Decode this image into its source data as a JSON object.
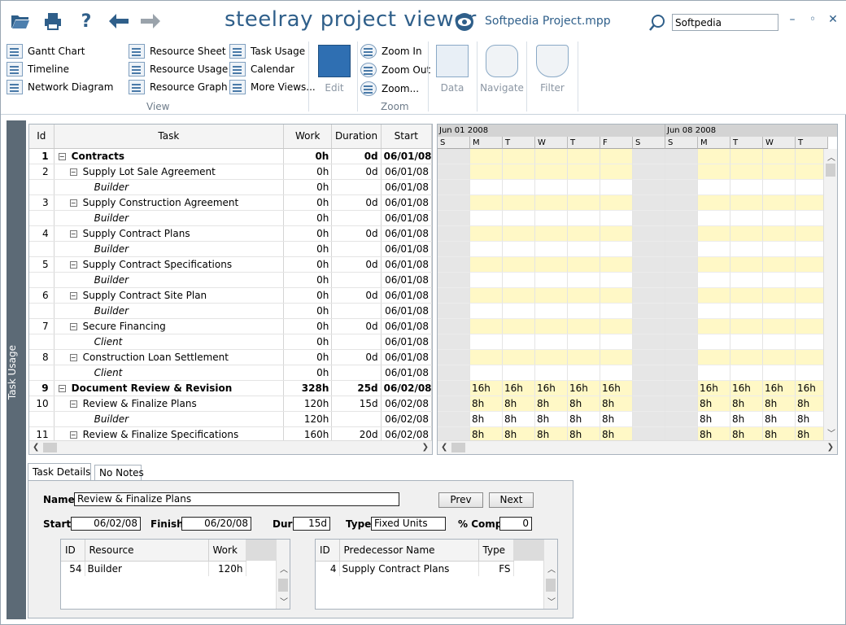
{
  "toolbar": {
    "app_title": "steelray project viewer",
    "file_title": "Softpedia Project.mpp",
    "search_value": "Softpedia",
    "icons": [
      "folder-open-icon",
      "print-icon",
      "help-icon",
      "back-arrow-icon",
      "forward-arrow-icon",
      "eye-icon",
      "search-icon"
    ],
    "window_buttons": {
      "minimize": "–",
      "restore": "◦",
      "close": "✕"
    }
  },
  "ribbon": {
    "view_col1": [
      "Gantt Chart",
      "Timeline",
      "Network Diagram"
    ],
    "view_col2": [
      "Resource Sheet",
      "Resource Usage",
      "Resource Graph"
    ],
    "view_col3": [
      "Task Usage",
      "Calendar",
      "More Views..."
    ],
    "view_group": "View",
    "edit": "Edit",
    "zoom": [
      "Zoom In",
      "Zoom Out",
      "Zoom..."
    ],
    "zoom_group": "Zoom",
    "data": "Data",
    "navigate": "Navigate",
    "filter": "Filter"
  },
  "side_tab": "Task Usage",
  "grid": {
    "columns": [
      "Id",
      "Task",
      "Work",
      "Duration",
      "Start"
    ],
    "rows": [
      {
        "id": "1",
        "task": "Contracts",
        "work": "0h",
        "duration": "0d",
        "start": "06/01/08",
        "level": 0,
        "toggle": "−",
        "bold": true,
        "res": false
      },
      {
        "id": "2",
        "task": "Supply Lot Sale Agreement",
        "work": "0h",
        "duration": "0d",
        "start": "06/01/08",
        "level": 1,
        "toggle": "−",
        "bold": false,
        "res": false
      },
      {
        "id": "",
        "task": "Builder",
        "work": "0h",
        "duration": "",
        "start": "06/01/08",
        "level": 2,
        "toggle": "",
        "bold": false,
        "res": true
      },
      {
        "id": "3",
        "task": "Supply Construction Agreement",
        "work": "0h",
        "duration": "0d",
        "start": "06/01/08",
        "level": 1,
        "toggle": "−",
        "bold": false,
        "res": false
      },
      {
        "id": "",
        "task": "Builder",
        "work": "0h",
        "duration": "",
        "start": "06/01/08",
        "level": 2,
        "toggle": "",
        "bold": false,
        "res": true
      },
      {
        "id": "4",
        "task": "Supply Contract Plans",
        "work": "0h",
        "duration": "0d",
        "start": "06/01/08",
        "level": 1,
        "toggle": "−",
        "bold": false,
        "res": false
      },
      {
        "id": "",
        "task": "Builder",
        "work": "0h",
        "duration": "",
        "start": "06/01/08",
        "level": 2,
        "toggle": "",
        "bold": false,
        "res": true
      },
      {
        "id": "5",
        "task": "Supply Contract Specifications",
        "work": "0h",
        "duration": "0d",
        "start": "06/01/08",
        "level": 1,
        "toggle": "−",
        "bold": false,
        "res": false
      },
      {
        "id": "",
        "task": "Builder",
        "work": "0h",
        "duration": "",
        "start": "06/01/08",
        "level": 2,
        "toggle": "",
        "bold": false,
        "res": true
      },
      {
        "id": "6",
        "task": "Supply Contract Site Plan",
        "work": "0h",
        "duration": "0d",
        "start": "06/01/08",
        "level": 1,
        "toggle": "−",
        "bold": false,
        "res": false
      },
      {
        "id": "",
        "task": "Builder",
        "work": "0h",
        "duration": "",
        "start": "06/01/08",
        "level": 2,
        "toggle": "",
        "bold": false,
        "res": true
      },
      {
        "id": "7",
        "task": "Secure Financing",
        "work": "0h",
        "duration": "0d",
        "start": "06/01/08",
        "level": 1,
        "toggle": "−",
        "bold": false,
        "res": false
      },
      {
        "id": "",
        "task": "Client",
        "work": "0h",
        "duration": "",
        "start": "06/01/08",
        "level": 2,
        "toggle": "",
        "bold": false,
        "res": true
      },
      {
        "id": "8",
        "task": "Construction Loan Settlement",
        "work": "0h",
        "duration": "0d",
        "start": "06/01/08",
        "level": 1,
        "toggle": "−",
        "bold": false,
        "res": false
      },
      {
        "id": "",
        "task": "Client",
        "work": "0h",
        "duration": "",
        "start": "06/01/08",
        "level": 2,
        "toggle": "",
        "bold": false,
        "res": true
      },
      {
        "id": "9",
        "task": "Document Review & Revision",
        "work": "328h",
        "duration": "25d",
        "start": "06/02/08",
        "level": 0,
        "toggle": "−",
        "bold": true,
        "res": false
      },
      {
        "id": "10",
        "task": "Review & Finalize Plans",
        "work": "120h",
        "duration": "15d",
        "start": "06/02/08",
        "level": 1,
        "toggle": "−",
        "bold": false,
        "res": false
      },
      {
        "id": "",
        "task": "Builder",
        "work": "120h",
        "duration": "",
        "start": "06/02/08",
        "level": 2,
        "toggle": "",
        "bold": false,
        "res": true
      },
      {
        "id": "11",
        "task": "Review & Finalize Specifications",
        "work": "160h",
        "duration": "20d",
        "start": "06/02/08",
        "level": 1,
        "toggle": "−",
        "bold": false,
        "res": false
      }
    ]
  },
  "timeline": {
    "weeks": [
      "Jun 01 2008",
      "Jun 08 2008"
    ],
    "days": [
      "S",
      "M",
      "T",
      "W",
      "T",
      "F",
      "S",
      "S",
      "M",
      "T",
      "W",
      "T"
    ],
    "nonworking": [
      0,
      6,
      7
    ],
    "rows": [
      [
        "",
        "",
        "",
        "",
        "",
        "",
        "",
        "",
        "",
        "",
        "",
        ""
      ],
      [
        "",
        "",
        "",
        "",
        "",
        "",
        "",
        "",
        "",
        "",
        "",
        ""
      ],
      [
        "",
        "",
        "",
        "",
        "",
        "",
        "",
        "",
        "",
        "",
        "",
        ""
      ],
      [
        "",
        "",
        "",
        "",
        "",
        "",
        "",
        "",
        "",
        "",
        "",
        ""
      ],
      [
        "",
        "",
        "",
        "",
        "",
        "",
        "",
        "",
        "",
        "",
        "",
        ""
      ],
      [
        "",
        "",
        "",
        "",
        "",
        "",
        "",
        "",
        "",
        "",
        "",
        ""
      ],
      [
        "",
        "",
        "",
        "",
        "",
        "",
        "",
        "",
        "",
        "",
        "",
        ""
      ],
      [
        "",
        "",
        "",
        "",
        "",
        "",
        "",
        "",
        "",
        "",
        "",
        ""
      ],
      [
        "",
        "",
        "",
        "",
        "",
        "",
        "",
        "",
        "",
        "",
        "",
        ""
      ],
      [
        "",
        "",
        "",
        "",
        "",
        "",
        "",
        "",
        "",
        "",
        "",
        ""
      ],
      [
        "",
        "",
        "",
        "",
        "",
        "",
        "",
        "",
        "",
        "",
        "",
        ""
      ],
      [
        "",
        "",
        "",
        "",
        "",
        "",
        "",
        "",
        "",
        "",
        "",
        ""
      ],
      [
        "",
        "",
        "",
        "",
        "",
        "",
        "",
        "",
        "",
        "",
        "",
        ""
      ],
      [
        "",
        "",
        "",
        "",
        "",
        "",
        "",
        "",
        "",
        "",
        "",
        ""
      ],
      [
        "",
        "",
        "",
        "",
        "",
        "",
        "",
        "",
        "",
        "",
        "",
        ""
      ],
      [
        "",
        "16h",
        "16h",
        "16h",
        "16h",
        "16h",
        "",
        "",
        "16h",
        "16h",
        "16h",
        "16h"
      ],
      [
        "",
        "8h",
        "8h",
        "8h",
        "8h",
        "8h",
        "",
        "",
        "8h",
        "8h",
        "8h",
        "8h"
      ],
      [
        "",
        "8h",
        "8h",
        "8h",
        "8h",
        "8h",
        "",
        "",
        "8h",
        "8h",
        "8h",
        "8h"
      ],
      [
        "",
        "8h",
        "8h",
        "8h",
        "8h",
        "8h",
        "",
        "",
        "8h",
        "8h",
        "8h",
        "8h"
      ]
    ]
  },
  "details": {
    "tabs": [
      "Task Details",
      "No Notes"
    ],
    "name_label": "Name:",
    "name": "Review & Finalize Plans",
    "prev": "Prev",
    "next": "Next",
    "start_label": "Start:",
    "start": "06/02/08",
    "finish_label": "Finish:",
    "finish": "06/20/08",
    "dur_label": "Dur:",
    "dur": "15d",
    "type_label": "Type:",
    "type": "Fixed Units",
    "comp_label": "% Comp:",
    "comp": "0",
    "resources": {
      "columns": [
        "ID",
        "Resource",
        "Work"
      ],
      "rows": [
        {
          "id": "54",
          "name": "Builder",
          "work": "120h"
        }
      ]
    },
    "predecessors": {
      "columns": [
        "ID",
        "Predecessor Name",
        "Type"
      ],
      "rows": [
        {
          "id": "4",
          "name": "Supply Contract Plans",
          "type": "FS"
        }
      ]
    }
  }
}
